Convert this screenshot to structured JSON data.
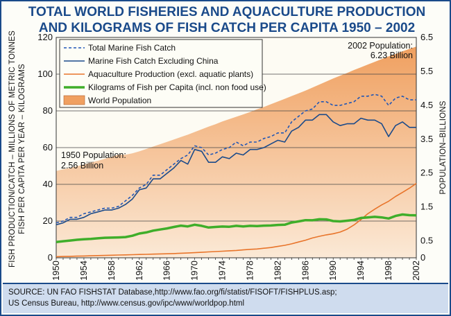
{
  "title_lines": [
    "TOTAL WORLD FISHERIES AND AQUACULTURE PRODUCTION",
    "AND KILOGRAMS OF FISH CATCH PER CAPITA 1950 – 2002"
  ],
  "source_lines": [
    "SOURCE: UN FAO FISHSTAT Database,http://www.fao.org/fi/statist/FISOFT/FISHPLUS.asp;",
    "US Census Bureau, http://www.census.gov/ipc/www/worldpop.html"
  ],
  "colors": {
    "title": "#1a4a8a",
    "total_catch": "#1f55b5",
    "excl_china": "#1a4a8a",
    "aquaculture": "#e8742a",
    "per_capita": "#3fae2a",
    "population_dark": "#f0a060",
    "population_light": "#fbe9d6",
    "source_bg": "#cfdcee"
  },
  "chart_data": {
    "type": "line",
    "x": [
      1950,
      1951,
      1952,
      1953,
      1954,
      1955,
      1956,
      1957,
      1958,
      1959,
      1960,
      1961,
      1962,
      1963,
      1964,
      1965,
      1966,
      1967,
      1968,
      1969,
      1970,
      1971,
      1972,
      1973,
      1974,
      1975,
      1976,
      1977,
      1978,
      1979,
      1980,
      1981,
      1982,
      1983,
      1984,
      1985,
      1986,
      1987,
      1988,
      1989,
      1990,
      1991,
      1992,
      1993,
      1994,
      1995,
      1996,
      1997,
      1998,
      1999,
      2000,
      2001,
      2002
    ],
    "xticks": [
      1950,
      1954,
      1958,
      1962,
      1966,
      1970,
      1974,
      1978,
      1982,
      1986,
      1990,
      1994,
      1998,
      2002
    ],
    "ylim": [
      0,
      120
    ],
    "yticks": [
      0,
      20,
      40,
      60,
      80,
      100,
      120
    ],
    "y2lim": [
      0,
      6.5
    ],
    "y2ticks": [
      0,
      0.5,
      1.5,
      2.5,
      3.5,
      4.5,
      5.5,
      6.5
    ],
    "ylabel_lines": [
      "FISH PRODUCTION/CATCH – MILLIONS OF METRIC TONNES",
      "FISH PER CAPITA PER YEAR – KILOGRAMS"
    ],
    "y2label": "POPULATION–BILLIONS",
    "series": [
      {
        "name": "Total Marine Fish Catch",
        "axis": "left",
        "style": "dashed",
        "values": [
          19,
          20,
          22,
          22,
          24,
          25,
          26,
          27,
          27,
          28,
          31,
          34,
          38,
          40,
          45,
          45,
          48,
          51,
          54,
          56,
          61,
          60,
          56,
          57,
          59,
          60,
          63,
          61,
          63,
          63,
          65,
          66,
          68,
          68,
          74,
          77,
          80,
          81,
          85,
          85,
          83,
          83,
          84,
          85,
          88,
          88,
          89,
          88,
          83,
          87,
          88,
          86,
          86
        ]
      },
      {
        "name": "Marine Fish Catch Excluding China",
        "axis": "left",
        "style": "solid",
        "values": [
          18,
          19,
          21,
          21,
          22,
          24,
          25,
          26,
          26,
          27,
          29,
          32,
          37,
          38,
          43,
          43,
          46,
          49,
          53,
          51,
          59,
          58,
          52,
          52,
          55,
          54,
          57,
          56,
          59,
          59,
          60,
          62,
          64,
          63,
          69,
          71,
          75,
          75,
          78,
          78,
          74,
          72,
          73,
          73,
          76,
          75,
          75,
          73,
          66,
          72,
          74,
          71,
          71
        ]
      },
      {
        "name": "Aquaculture Production (excl. aquatic plants)",
        "axis": "left",
        "style": "solid",
        "values": [
          0.6,
          0.7,
          0.8,
          0.9,
          1.0,
          1.1,
          1.2,
          1.3,
          1.4,
          1.5,
          1.6,
          1.7,
          1.8,
          1.9,
          2.0,
          2.1,
          2.2,
          2.3,
          2.5,
          2.6,
          2.8,
          3.0,
          3.2,
          3.4,
          3.6,
          3.8,
          4.0,
          4.3,
          4.6,
          4.8,
          5.2,
          5.6,
          6.2,
          6.8,
          7.6,
          8.6,
          9.6,
          10.8,
          11.7,
          12.5,
          13.1,
          14.0,
          15.6,
          17.9,
          20.8,
          24.0,
          26.5,
          28.8,
          30.8,
          33.4,
          35.6,
          37.9,
          40.5
        ]
      },
      {
        "name": "Kilograms of Fish per Capita (incl. non food use)",
        "axis": "left",
        "style": "thick",
        "values": [
          8.6,
          9.0,
          9.4,
          9.8,
          10.1,
          10.3,
          10.6,
          10.9,
          11.0,
          11.1,
          11.3,
          12.0,
          13.2,
          13.8,
          14.8,
          15.4,
          16.0,
          16.8,
          17.5,
          17.1,
          18.0,
          17.4,
          16.5,
          16.8,
          17.0,
          16.9,
          17.4,
          17.1,
          17.4,
          17.3,
          17.5,
          17.6,
          17.9,
          18.0,
          19.2,
          19.8,
          20.5,
          20.4,
          21.0,
          20.9,
          20.0,
          19.8,
          20.2,
          20.6,
          21.7,
          22.0,
          22.3,
          22.0,
          21.4,
          22.8,
          23.6,
          23.2,
          23.1
        ]
      },
      {
        "name": "World Population",
        "axis": "right",
        "style": "area",
        "values": [
          2.56,
          2.61,
          2.65,
          2.7,
          2.75,
          2.81,
          2.86,
          2.92,
          2.98,
          3.04,
          3.04,
          3.08,
          3.14,
          3.21,
          3.28,
          3.35,
          3.42,
          3.49,
          3.56,
          3.63,
          3.71,
          3.79,
          3.87,
          3.94,
          4.02,
          4.09,
          4.16,
          4.23,
          4.3,
          4.38,
          4.45,
          4.53,
          4.61,
          4.69,
          4.77,
          4.85,
          4.93,
          5.02,
          5.11,
          5.2,
          5.29,
          5.37,
          5.45,
          5.54,
          5.62,
          5.7,
          5.78,
          5.86,
          5.94,
          6.01,
          6.09,
          6.16,
          6.23
        ]
      }
    ],
    "annotations": [
      {
        "lines": [
          "1950 Population:",
          "2.56 Billion"
        ]
      },
      {
        "lines": [
          "2002 Population:",
          "6.23 Billion"
        ]
      }
    ],
    "legend_position": "top-left"
  }
}
